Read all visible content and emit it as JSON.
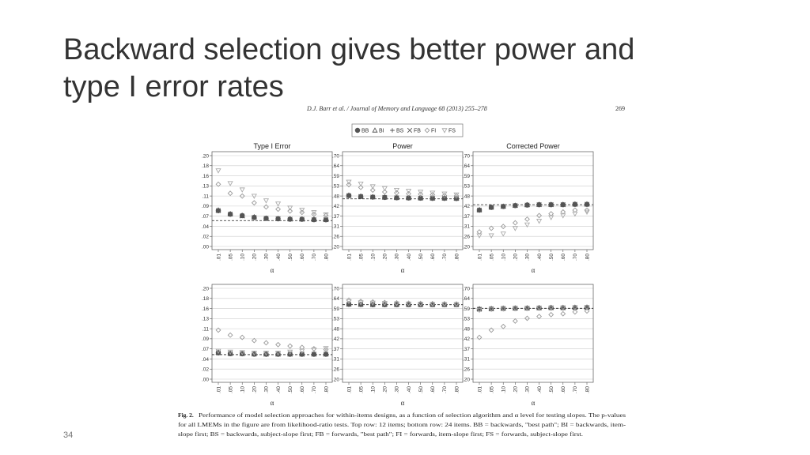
{
  "slide": {
    "title_lines": [
      "Backward selection gives better power and",
      "type I error rates"
    ],
    "page_number": "34"
  },
  "figure": {
    "header": "D.J. Barr et al. / Journal of Memory and Language 68 (2013) 255–278",
    "page": "269",
    "caption_label": "Fig. 2.",
    "caption_lines": [
      "Performance of model selection approaches for within-items designs, as a function of selection algorithm and α level for testing slopes. The p-values",
      "for all LMEMs in the figure are from likelihood-ratio tests. Top row: 12 items; bottom row: 24 items. BB = backwards, \"best path\"; BI = backwards, item-",
      "slope first; BS = backwards, subject-slope first; FB = forwards, \"best path\"; FI = forwards, item-slope first; FS = forwards, subject-slope first."
    ],
    "legend": [
      {
        "name": "BB",
        "marker": "circle",
        "color": "#555555"
      },
      {
        "name": "BI",
        "marker": "triangle",
        "color": "#555555"
      },
      {
        "name": "BS",
        "marker": "plus",
        "color": "#555555"
      },
      {
        "name": "FB",
        "marker": "cross",
        "color": "#555555"
      },
      {
        "name": "FI",
        "marker": "diamond",
        "color": "#999999"
      },
      {
        "name": "FS",
        "marker": "triangle-down",
        "color": "#aaaaaa"
      }
    ]
  },
  "chart_data": [
    {
      "type": "scatter",
      "title": "Type I Error",
      "xlabel": "α",
      "categories": [
        ".01",
        ".05",
        ".10",
        ".20",
        ".30",
        ".40",
        ".50",
        ".60",
        ".70",
        ".80"
      ],
      "ylim": [
        0,
        0.2
      ],
      "yticks": [
        {
          "value": 0,
          "label": ".00"
        },
        {
          "value": 0.0222,
          "label": ".02"
        },
        {
          "value": 0.0444,
          "label": ".04"
        },
        {
          "value": 0.0667,
          "label": ".07"
        },
        {
          "value": 0.0889,
          "label": ".09"
        },
        {
          "value": 0.1111,
          "label": ".11"
        },
        {
          "value": 0.1333,
          "label": ".13"
        },
        {
          "value": 0.1556,
          "label": ".16"
        },
        {
          "value": 0.1778,
          "label": ".18"
        },
        {
          "value": 0.2,
          "label": ".20"
        }
      ],
      "grid": true,
      "reference_line": 0.057,
      "series": [
        {
          "values": [
            0.079,
            0.071,
            0.068,
            0.064,
            0.062,
            0.061,
            0.06,
            0.06,
            0.059,
            0.059
          ]
        },
        {
          "values": [
            0.08,
            0.072,
            0.068,
            0.065,
            0.062,
            0.061,
            0.061,
            0.06,
            0.06,
            0.059
          ]
        },
        {
          "values": [
            0.078,
            0.07,
            0.067,
            0.063,
            0.061,
            0.06,
            0.06,
            0.059,
            0.059,
            0.058
          ]
        },
        {
          "values": [
            0.079,
            0.071,
            0.067,
            0.064,
            0.062,
            0.061,
            0.06,
            0.06,
            0.059,
            0.059
          ]
        },
        {
          "values": [
            0.137,
            0.117,
            0.111,
            0.096,
            0.087,
            0.082,
            0.078,
            0.075,
            0.071,
            0.068
          ]
        },
        {
          "values": [
            0.167,
            0.139,
            0.125,
            0.111,
            0.101,
            0.094,
            0.085,
            0.08,
            0.075,
            0.07
          ]
        }
      ]
    },
    {
      "type": "scatter",
      "title": "Power",
      "xlabel": "α",
      "categories": [
        ".01",
        ".05",
        ".10",
        ".20",
        ".30",
        ".40",
        ".50",
        ".60",
        ".70",
        ".80"
      ],
      "ylim": [
        0.2,
        0.7
      ],
      "yticks": [
        {
          "value": 0.2,
          "label": ".20"
        },
        {
          "value": 0.2556,
          "label": ".26"
        },
        {
          "value": 0.3111,
          "label": ".31"
        },
        {
          "value": 0.3667,
          "label": ".37"
        },
        {
          "value": 0.4222,
          "label": ".42"
        },
        {
          "value": 0.4778,
          "label": ".48"
        },
        {
          "value": 0.5333,
          "label": ".53"
        },
        {
          "value": 0.5889,
          "label": ".59"
        },
        {
          "value": 0.6444,
          "label": ".64"
        },
        {
          "value": 0.7,
          "label": ".70"
        }
      ],
      "grid": true,
      "reference_line": 0.462,
      "series": [
        {
          "values": [
            0.48,
            0.475,
            0.472,
            0.47,
            0.468,
            0.467,
            0.466,
            0.465,
            0.465,
            0.464
          ]
        },
        {
          "values": [
            0.482,
            0.476,
            0.473,
            0.471,
            0.469,
            0.468,
            0.467,
            0.466,
            0.466,
            0.465
          ]
        },
        {
          "values": [
            0.479,
            0.474,
            0.471,
            0.469,
            0.467,
            0.466,
            0.465,
            0.464,
            0.464,
            0.463
          ]
        },
        {
          "values": [
            0.48,
            0.475,
            0.472,
            0.47,
            0.468,
            0.467,
            0.466,
            0.465,
            0.465,
            0.464
          ]
        },
        {
          "values": [
            0.54,
            0.525,
            0.51,
            0.5,
            0.495,
            0.49,
            0.488,
            0.485,
            0.48,
            0.478
          ]
        },
        {
          "values": [
            0.555,
            0.545,
            0.53,
            0.52,
            0.51,
            0.505,
            0.5,
            0.495,
            0.49,
            0.485
          ]
        }
      ]
    },
    {
      "type": "scatter",
      "title": "Corrected Power",
      "xlabel": "α",
      "categories": [
        ".01",
        ".05",
        ".10",
        ".20",
        ".30",
        ".40",
        ".50",
        ".60",
        ".70",
        ".80"
      ],
      "ylim": [
        0.2,
        0.7
      ],
      "yticks": [
        {
          "value": 0.2,
          "label": ".20"
        },
        {
          "value": 0.2556,
          "label": ".26"
        },
        {
          "value": 0.3111,
          "label": ".31"
        },
        {
          "value": 0.3667,
          "label": ".37"
        },
        {
          "value": 0.4222,
          "label": ".42"
        },
        {
          "value": 0.4778,
          "label": ".48"
        },
        {
          "value": 0.5333,
          "label": ".53"
        },
        {
          "value": 0.5889,
          "label": ".59"
        },
        {
          "value": 0.6444,
          "label": ".64"
        },
        {
          "value": 0.7,
          "label": ".70"
        }
      ],
      "grid": true,
      "reference_line": 0.43,
      "series": [
        {
          "values": [
            0.4,
            0.415,
            0.42,
            0.425,
            0.428,
            0.43,
            0.43,
            0.43,
            0.432,
            0.432
          ]
        },
        {
          "values": [
            0.402,
            0.416,
            0.421,
            0.426,
            0.429,
            0.431,
            0.431,
            0.431,
            0.433,
            0.433
          ]
        },
        {
          "values": [
            0.399,
            0.414,
            0.419,
            0.424,
            0.427,
            0.429,
            0.429,
            0.429,
            0.431,
            0.431
          ]
        },
        {
          "values": [
            0.4,
            0.415,
            0.42,
            0.425,
            0.428,
            0.43,
            0.43,
            0.43,
            0.432,
            0.432
          ]
        },
        {
          "values": [
            0.28,
            0.3,
            0.31,
            0.33,
            0.35,
            0.37,
            0.38,
            0.39,
            0.4,
            0.4
          ]
        },
        {
          "values": [
            0.26,
            0.26,
            0.27,
            0.3,
            0.32,
            0.34,
            0.36,
            0.37,
            0.38,
            0.39
          ]
        }
      ]
    },
    {
      "type": "scatter",
      "xlabel": "α",
      "categories": [
        ".01",
        ".05",
        ".10",
        ".20",
        ".30",
        ".40",
        ".50",
        ".60",
        ".70",
        ".80"
      ],
      "ylim": [
        0,
        0.2
      ],
      "yticks": [
        {
          "value": 0,
          "label": ".00"
        },
        {
          "value": 0.0222,
          "label": ".02"
        },
        {
          "value": 0.0444,
          "label": ".04"
        },
        {
          "value": 0.0667,
          "label": ".07"
        },
        {
          "value": 0.0889,
          "label": ".09"
        },
        {
          "value": 0.1111,
          "label": ".11"
        },
        {
          "value": 0.1333,
          "label": ".13"
        },
        {
          "value": 0.1556,
          "label": ".16"
        },
        {
          "value": 0.1778,
          "label": ".18"
        },
        {
          "value": 0.2,
          "label": ".20"
        }
      ],
      "grid": true,
      "reference_line": 0.054,
      "series": [
        {
          "values": [
            0.058,
            0.056,
            0.056,
            0.055,
            0.055,
            0.055,
            0.055,
            0.055,
            0.055,
            0.055
          ]
        },
        {
          "values": [
            0.059,
            0.057,
            0.056,
            0.056,
            0.055,
            0.055,
            0.055,
            0.055,
            0.055,
            0.055
          ]
        },
        {
          "values": [
            0.057,
            0.056,
            0.055,
            0.055,
            0.054,
            0.054,
            0.054,
            0.054,
            0.054,
            0.054
          ]
        },
        {
          "values": [
            0.058,
            0.056,
            0.056,
            0.055,
            0.055,
            0.055,
            0.055,
            0.055,
            0.055,
            0.055
          ]
        },
        {
          "values": [
            0.108,
            0.097,
            0.092,
            0.085,
            0.08,
            0.076,
            0.073,
            0.07,
            0.067,
            0.065
          ]
        },
        {
          "values": [
            0.062,
            0.06,
            0.059,
            0.058,
            0.058,
            0.058,
            0.06,
            0.062,
            0.065,
            0.068
          ]
        }
      ]
    },
    {
      "type": "scatter",
      "xlabel": "α",
      "categories": [
        ".01",
        ".05",
        ".10",
        ".20",
        ".30",
        ".40",
        ".50",
        ".60",
        ".70",
        ".80"
      ],
      "ylim": [
        0.2,
        0.7
      ],
      "yticks": [
        {
          "value": 0.2,
          "label": ".20"
        },
        {
          "value": 0.2556,
          "label": ".26"
        },
        {
          "value": 0.3111,
          "label": ".31"
        },
        {
          "value": 0.3667,
          "label": ".37"
        },
        {
          "value": 0.4222,
          "label": ".42"
        },
        {
          "value": 0.4778,
          "label": ".48"
        },
        {
          "value": 0.5333,
          "label": ".53"
        },
        {
          "value": 0.5889,
          "label": ".59"
        },
        {
          "value": 0.6444,
          "label": ".64"
        },
        {
          "value": 0.7,
          "label": ".70"
        }
      ],
      "grid": true,
      "reference_line": 0.61,
      "series": [
        {
          "values": [
            0.612,
            0.611,
            0.61,
            0.61,
            0.61,
            0.61,
            0.61,
            0.61,
            0.61,
            0.61
          ]
        },
        {
          "values": [
            0.614,
            0.612,
            0.611,
            0.611,
            0.611,
            0.611,
            0.611,
            0.611,
            0.611,
            0.611
          ]
        },
        {
          "values": [
            0.611,
            0.61,
            0.609,
            0.609,
            0.609,
            0.609,
            0.609,
            0.609,
            0.609,
            0.609
          ]
        },
        {
          "values": [
            0.612,
            0.611,
            0.61,
            0.61,
            0.61,
            0.61,
            0.61,
            0.61,
            0.61,
            0.61
          ]
        },
        {
          "values": [
            0.635,
            0.628,
            0.625,
            0.622,
            0.62,
            0.618,
            0.617,
            0.616,
            0.615,
            0.614
          ]
        },
        {
          "values": [
            0.628,
            0.622,
            0.62,
            0.618,
            0.616,
            0.615,
            0.614,
            0.613,
            0.613,
            0.612
          ]
        }
      ]
    },
    {
      "type": "scatter",
      "xlabel": "α",
      "categories": [
        ".01",
        ".05",
        ".10",
        ".20",
        ".30",
        ".40",
        ".50",
        ".60",
        ".70",
        ".80"
      ],
      "ylim": [
        0.2,
        0.7
      ],
      "yticks": [
        {
          "value": 0.2,
          "label": ".20"
        },
        {
          "value": 0.2556,
          "label": ".26"
        },
        {
          "value": 0.3111,
          "label": ".31"
        },
        {
          "value": 0.3667,
          "label": ".37"
        },
        {
          "value": 0.4222,
          "label": ".42"
        },
        {
          "value": 0.4778,
          "label": ".48"
        },
        {
          "value": 0.5333,
          "label": ".53"
        },
        {
          "value": 0.5889,
          "label": ".59"
        },
        {
          "value": 0.6444,
          "label": ".64"
        },
        {
          "value": 0.7,
          "label": ".70"
        }
      ],
      "grid": true,
      "reference_line": 0.59,
      "series": [
        {
          "values": [
            0.585,
            0.587,
            0.589,
            0.59,
            0.591,
            0.592,
            0.593,
            0.593,
            0.594,
            0.595
          ]
        },
        {
          "values": [
            0.587,
            0.588,
            0.59,
            0.591,
            0.592,
            0.593,
            0.594,
            0.594,
            0.595,
            0.596
          ]
        },
        {
          "values": [
            0.584,
            0.586,
            0.588,
            0.589,
            0.59,
            0.591,
            0.592,
            0.592,
            0.593,
            0.594
          ]
        },
        {
          "values": [
            0.585,
            0.587,
            0.589,
            0.59,
            0.591,
            0.592,
            0.593,
            0.593,
            0.594,
            0.595
          ]
        },
        {
          "values": [
            0.43,
            0.47,
            0.49,
            0.52,
            0.535,
            0.545,
            0.555,
            0.56,
            0.57,
            0.575
          ]
        },
        {
          "values": [
            0.58,
            0.585,
            0.587,
            0.589,
            0.59,
            0.591,
            0.592,
            0.593,
            0.594,
            0.595
          ]
        }
      ]
    }
  ]
}
